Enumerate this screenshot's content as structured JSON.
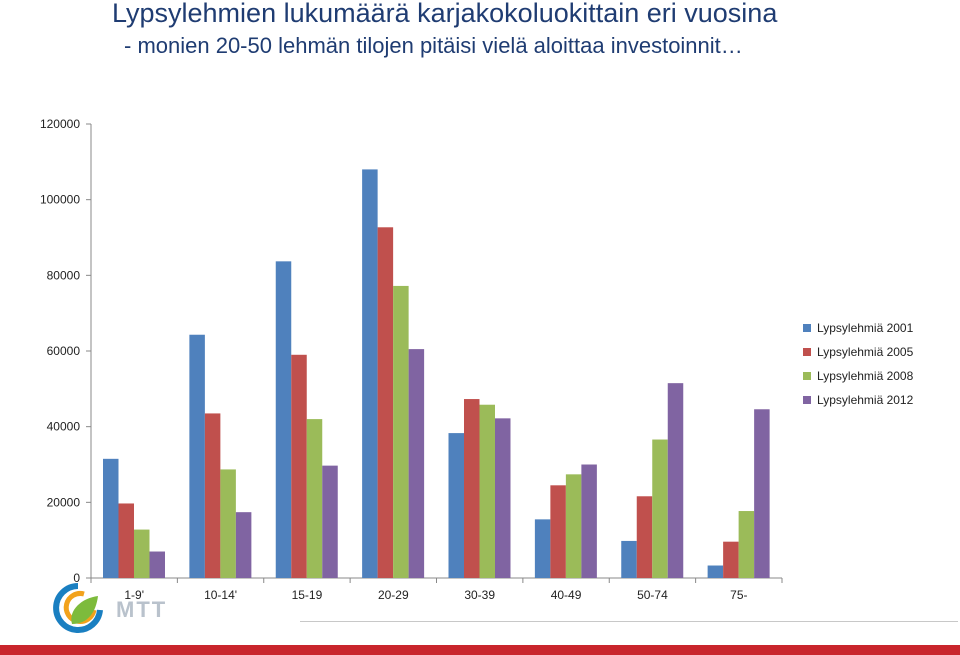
{
  "header": {
    "title": "Lypsylehmien lukumäärä karjakokoluokittain eri vuosina",
    "subtitle": "- monien 20-50 lehmän tilojen pitäisi vielä aloittaa investoinnit…"
  },
  "logo": {
    "text": "MTT",
    "icon": "mtt-logo-icon"
  },
  "chart_data": {
    "type": "bar",
    "title": "",
    "xlabel": "",
    "ylabel": "",
    "categories": [
      "1-9'",
      "10-14'",
      "15-19",
      "20-29",
      "30-39",
      "40-49",
      "50-74",
      "75-"
    ],
    "ylim": [
      0,
      120000
    ],
    "yticks": [
      0,
      20000,
      40000,
      60000,
      80000,
      100000,
      120000
    ],
    "grid": false,
    "legend_position": "right",
    "series": [
      {
        "name": "Lypsylehmiä 2001",
        "color": "#4f81bd",
        "values": [
          31500,
          64300,
          83700,
          108000,
          38300,
          15500,
          9800,
          3300
        ]
      },
      {
        "name": "Lypsylehmiä 2005",
        "color": "#c0504d",
        "values": [
          19700,
          43500,
          59000,
          92700,
          47300,
          24500,
          21600,
          9600
        ]
      },
      {
        "name": "Lypsylehmiä 2008",
        "color": "#9bbb59",
        "values": [
          12800,
          28700,
          42000,
          77200,
          45800,
          27400,
          36600,
          17700
        ]
      },
      {
        "name": "Lypsylehmiä 2012",
        "color": "#8064a2",
        "values": [
          7000,
          17400,
          29700,
          60500,
          42200,
          30000,
          51500,
          44600
        ]
      }
    ]
  }
}
